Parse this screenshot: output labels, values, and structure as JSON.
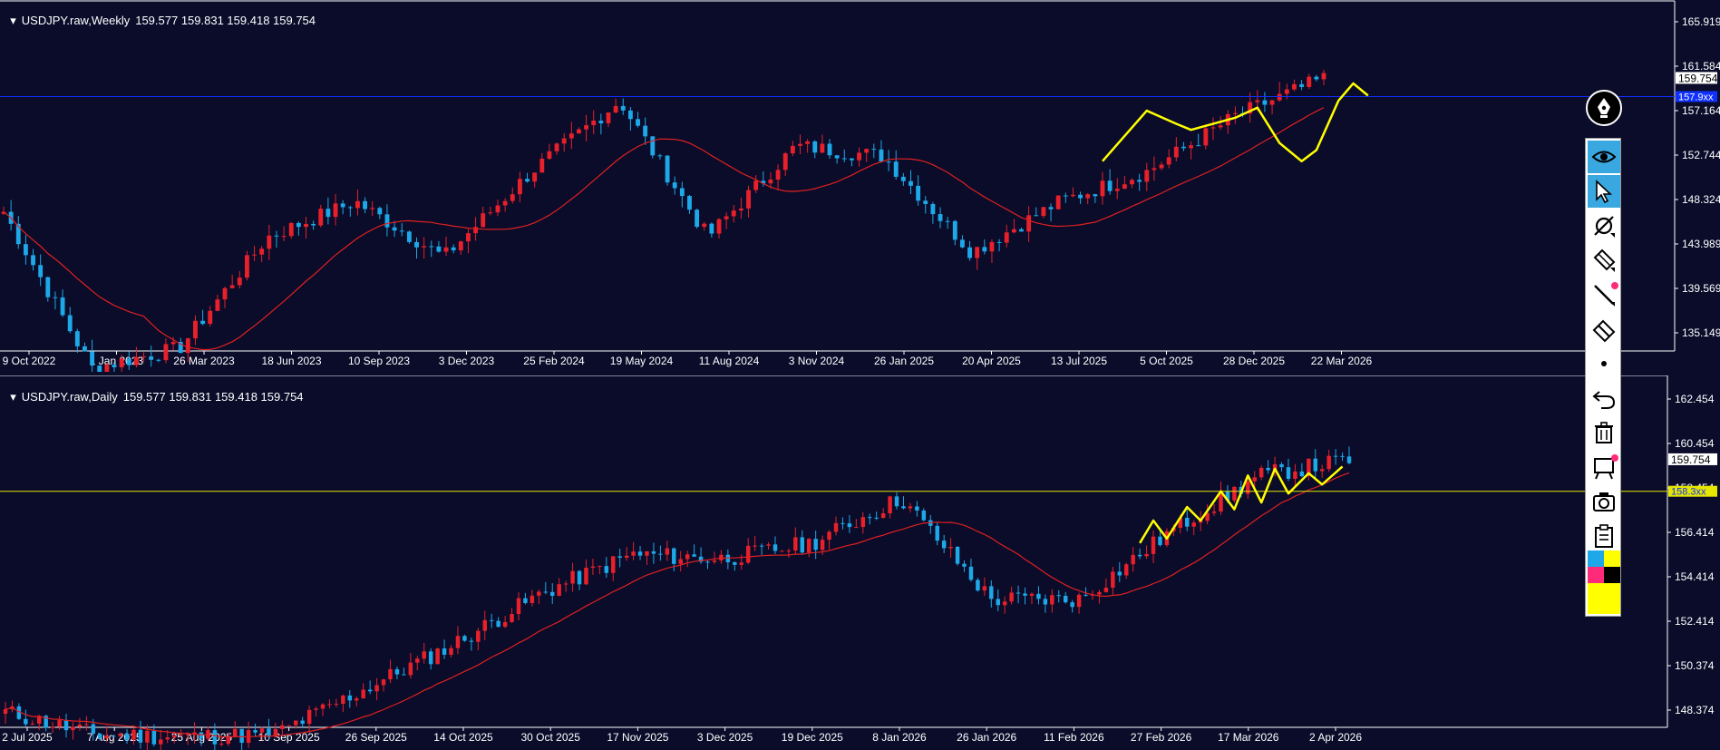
{
  "colors": {
    "background": "#0a0c2a",
    "bull": "#e8202a",
    "bear": "#1ea8e8",
    "ma": "#e02020",
    "drawing": "#ffff00",
    "axis_text": "#ffffff",
    "hline_top": "#1030ff",
    "hline_bottom": "#e6e600"
  },
  "charts": {
    "weekly": {
      "title_symbol": "USDJPY.raw,Weekly",
      "title_ohlc": "159.577 159.831 159.418 159.754",
      "y_ticks": [
        "165.919",
        "161.584",
        "157.164",
        "152.744",
        "148.324",
        "143.989",
        "139.569",
        "135.149"
      ],
      "x_ticks": [
        "9 Oct 2022",
        "1 Jan 2023",
        "26 Mar 2023",
        "18 Jun 2023",
        "10 Sep 2023",
        "3 Dec 2023",
        "25 Feb 2024",
        "19 May 2024",
        "11 Aug 2024",
        "3 Nov 2024",
        "26 Jan 2025",
        "20 Apr 2025",
        "13 Jul 2025",
        "5 Oct 2025",
        "28 Dec 2025",
        "22 Mar 2026"
      ],
      "price_label": "159.754",
      "hline_label": "157.9xx"
    },
    "daily": {
      "title_symbol": "USDJPY.raw,Daily",
      "title_ohlc": "159.577 159.831 159.418 159.754",
      "y_ticks": [
        "162.454",
        "160.454",
        "158.454",
        "156.414",
        "154.414",
        "152.414",
        "150.374",
        "148.374"
      ],
      "x_ticks": [
        "2 Jul 2025",
        "7 Aug 2025",
        "25 Aug 2025",
        "10 Sep 2025",
        "26 Sep 2025",
        "14 Oct 2025",
        "30 Oct 2025",
        "17 Nov 2025",
        "3 Dec 2025",
        "19 Dec 2025",
        "8 Jan 2026",
        "26 Jan 2026",
        "11 Feb 2026",
        "27 Feb 2026",
        "17 Mar 2026",
        "2 Apr 2026"
      ],
      "price_label": "159.754",
      "hline_label": "158.3xx"
    }
  },
  "chart_data": [
    {
      "type": "line",
      "title": "USDJPY.raw,Weekly",
      "subtitle": "159.577 159.831 159.418 159.754",
      "x": [
        "9 Oct 2022",
        "1 Jan 2023",
        "26 Mar 2023",
        "18 Jun 2023",
        "10 Sep 2023",
        "3 Dec 2023",
        "25 Feb 2024",
        "19 May 2024",
        "11 Aug 2024",
        "3 Nov 2024",
        "26 Jan 2025",
        "20 Apr 2025",
        "13 Jul 2025",
        "5 Oct 2025",
        "28 Dec 2025",
        "22 Mar 2026"
      ],
      "series": [
        {
          "name": "",
          "values": [
            146.5,
            131.0,
            133.0,
            144.0,
            147.5,
            142.0,
            150.5,
            157.5,
            144.0,
            153.0,
            152.0,
            142.5,
            147.5,
            150.5,
            156.0,
            159.7
          ]
        }
      ],
      "ylim": [
        132.8,
        167.1
      ],
      "grid": false
    },
    {
      "type": "line",
      "title": "USDJPY.raw,Daily",
      "subtitle": "159.577 159.831 159.418 159.754",
      "x": [
        "2 Jul 2025",
        "7 Aug 2025",
        "25 Aug 2025",
        "10 Sep 2025",
        "26 Sep 2025",
        "14 Oct 2025",
        "30 Oct 2025",
        "17 Nov 2025",
        "3 Dec 2025",
        "19 Dec 2025",
        "8 Jan 2026",
        "26 Jan 2026",
        "11 Feb 2026",
        "27 Feb 2026",
        "17 Mar 2026",
        "2 Apr 2026"
      ],
      "series": [
        {
          "name": "",
          "values": [
            148.5,
            147.5,
            147.4,
            147.5,
            149.5,
            151.5,
            153.8,
            155.5,
            155.3,
            156.0,
            158.0,
            153.5,
            153.5,
            156.5,
            159.0,
            159.7
          ]
        }
      ],
      "ylim": [
        147.9,
        163.2
      ],
      "grid": false
    }
  ]
}
